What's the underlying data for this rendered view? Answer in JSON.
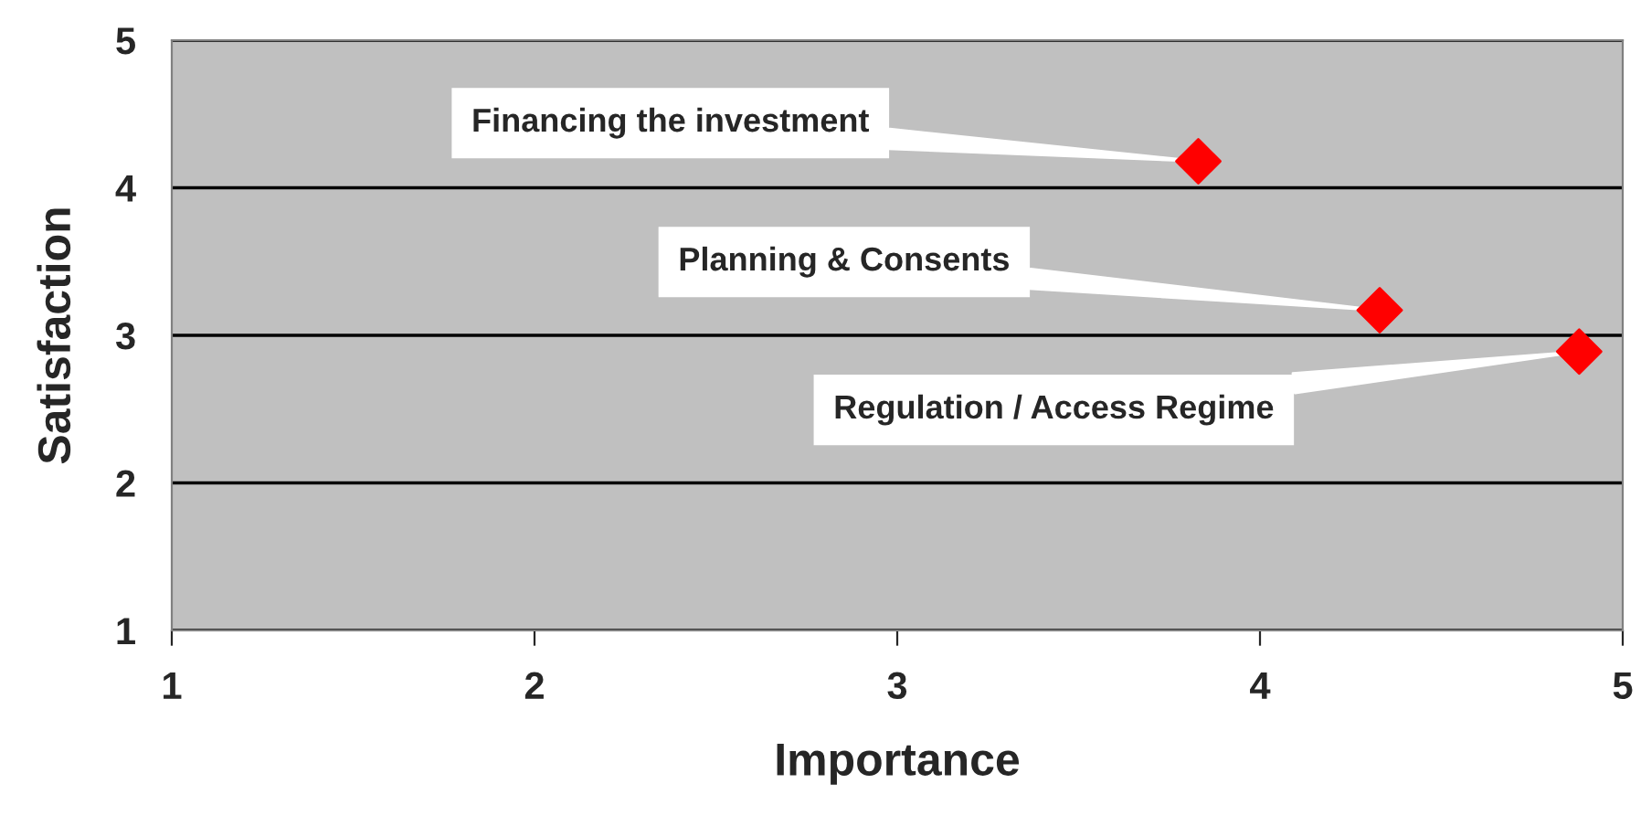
{
  "chart_data": {
    "type": "scatter",
    "xlabel": "Importance",
    "ylabel": "Satisfaction",
    "series": [
      {
        "color": "#ff0000",
        "x": [
          3.83,
          4.33,
          4.88
        ],
        "values": [
          4.18,
          3.17,
          2.89
        ]
      }
    ],
    "xlim": [
      1,
      5
    ],
    "ylim": [
      1,
      5
    ],
    "xticks": [
      1,
      2,
      3,
      4,
      5
    ],
    "yticks": [
      1,
      2,
      3,
      4,
      5
    ],
    "grid": "y",
    "marker": "diamond",
    "annotations": [
      {
        "text": "Financing the investment",
        "x": 3.83,
        "y": 4.18
      },
      {
        "text": "Planning & Consents",
        "x": 4.33,
        "y": 3.17
      },
      {
        "text": "Regulation / Access Regime",
        "x": 4.88,
        "y": 2.89
      }
    ]
  }
}
